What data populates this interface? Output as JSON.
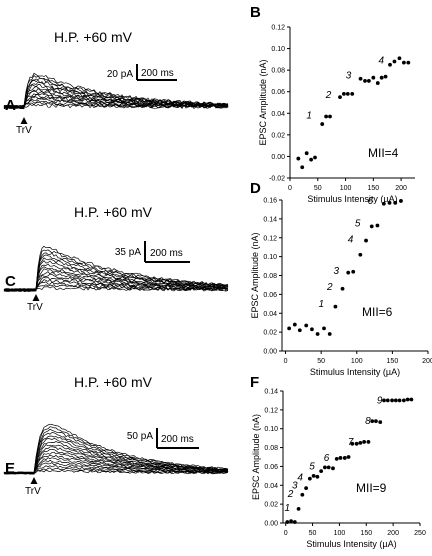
{
  "panels": {
    "A": {
      "letter": "A",
      "hp": "H.P. +60 mV",
      "scale_amp": "20 pA",
      "scale_time": "200 ms",
      "stim": "TrV",
      "n_traces": 16
    },
    "C": {
      "letter": "C",
      "hp": "H.P. +60 mV",
      "scale_amp": "35 pA",
      "scale_time": "200 ms",
      "stim": "TrV",
      "n_traces": 16
    },
    "E": {
      "letter": "E",
      "hp": "H.P. +60 mV",
      "scale_amp": "50 pA",
      "scale_time": "200 ms",
      "stim": "TrV",
      "n_traces": 18
    }
  },
  "chart_data": [
    {
      "letter": "B",
      "type": "scatter",
      "xlabel": "Stimulus Intensity (µA)",
      "ylabel": "EPSC Amplitude (nA)",
      "xlim": [
        0,
        225
      ],
      "ylim": [
        -0.02,
        0.12
      ],
      "xticks": [
        0,
        50,
        100,
        150,
        200
      ],
      "yticks": [
        -0.02,
        0.0,
        0.02,
        0.04,
        0.06,
        0.08,
        0.1,
        0.12
      ],
      "ytick_labels": [
        "-0.02",
        "0.00",
        "0.02",
        "0.04",
        "0.06",
        "0.08",
        "0.10",
        "0.12"
      ],
      "annotation": "MII=4",
      "x": [
        15,
        22,
        30,
        38,
        45,
        58,
        65,
        72,
        90,
        97,
        104,
        112,
        127,
        135,
        142,
        150,
        158,
        165,
        172,
        180,
        188,
        197,
        205,
        213
      ],
      "y": [
        -0.002,
        -0.01,
        0.003,
        -0.003,
        -0.001,
        0.03,
        0.037,
        0.037,
        0.055,
        0.058,
        0.058,
        0.058,
        0.072,
        0.07,
        0.07,
        0.073,
        0.068,
        0.073,
        0.074,
        0.085,
        0.088,
        0.091,
        0.087,
        0.087
      ],
      "step_labels": [
        {
          "text": "1",
          "x": 47,
          "y": 0.038
        },
        {
          "text": "2",
          "x": 82,
          "y": 0.057
        },
        {
          "text": "3",
          "x": 118,
          "y": 0.075
        },
        {
          "text": "4",
          "x": 177,
          "y": 0.089
        }
      ]
    },
    {
      "letter": "D",
      "type": "scatter",
      "xlabel": "Stimulus Intensity (µA)",
      "ylabel": "EPSC Amplitude (nA)",
      "xlim": [
        -5,
        200
      ],
      "ylim": [
        0.0,
        0.16
      ],
      "xticks": [
        0,
        50,
        100,
        150,
        200
      ],
      "yticks": [
        0.0,
        0.02,
        0.04,
        0.06,
        0.08,
        0.1,
        0.12,
        0.14,
        0.16
      ],
      "ytick_labels": [
        "0.00",
        "0.02",
        "0.04",
        "0.06",
        "0.08",
        "0.10",
        "0.12",
        "0.14",
        "0.16"
      ],
      "annotation": "MII=6",
      "x": [
        5,
        13,
        20,
        29,
        37,
        45,
        54,
        62,
        70,
        80,
        88,
        95,
        105,
        113,
        121,
        129,
        138,
        146,
        154,
        162
      ],
      "y": [
        0.024,
        0.028,
        0.022,
        0.027,
        0.023,
        0.018,
        0.024,
        0.018,
        0.047,
        0.066,
        0.083,
        0.084,
        0.102,
        0.117,
        0.132,
        0.133,
        0.156,
        0.157,
        0.157,
        0.159
      ],
      "step_labels": [
        {
          "text": "1",
          "x": 60,
          "y": 0.05
        },
        {
          "text": "2",
          "x": 72,
          "y": 0.068
        },
        {
          "text": "3",
          "x": 81,
          "y": 0.085
        },
        {
          "text": "4",
          "x": 101,
          "y": 0.118
        },
        {
          "text": "5",
          "x": 111,
          "y": 0.135
        },
        {
          "text": "6",
          "x": 129,
          "y": 0.159
        }
      ]
    },
    {
      "letter": "F",
      "type": "scatter",
      "xlabel": "Stimulus Intensity (µA)",
      "ylabel": "EPSC Amplitude (nA)",
      "xlim": [
        -5,
        250
      ],
      "ylim": [
        0.0,
        0.14
      ],
      "xticks": [
        0,
        50,
        100,
        150,
        200,
        250
      ],
      "yticks": [
        0.0,
        0.02,
        0.04,
        0.06,
        0.08,
        0.1,
        0.12,
        0.14
      ],
      "ytick_labels": [
        "0.00",
        "0.02",
        "0.04",
        "0.06",
        "0.08",
        "0.10",
        "0.12",
        "0.14"
      ],
      "annotation": "MII=9",
      "x": [
        3,
        10,
        17,
        24,
        31,
        38,
        45,
        52,
        59,
        66,
        73,
        80,
        88,
        95,
        102,
        110,
        117,
        124,
        132,
        139,
        146,
        154,
        161,
        168,
        176,
        183,
        190,
        198,
        205,
        212,
        220,
        227,
        234
      ],
      "y": [
        0.001,
        0.002,
        0.001,
        0.015,
        0.03,
        0.037,
        0.047,
        0.05,
        0.049,
        0.055,
        0.059,
        0.059,
        0.058,
        0.068,
        0.069,
        0.069,
        0.07,
        0.084,
        0.084,
        0.085,
        0.086,
        0.086,
        0.108,
        0.108,
        0.107,
        0.13,
        0.13,
        0.13,
        0.13,
        0.13,
        0.13,
        0.131,
        0.131
      ],
      "step_labels": [
        {
          "text": "1",
          "x": 16,
          "y": 0.016
        },
        {
          "text": "2",
          "x": 22,
          "y": 0.031
        },
        {
          "text": "3",
          "x": 30,
          "y": 0.04
        },
        {
          "text": "4",
          "x": 40,
          "y": 0.048
        },
        {
          "text": "5",
          "x": 62,
          "y": 0.06
        },
        {
          "text": "6",
          "x": 89,
          "y": 0.069
        },
        {
          "text": "7",
          "x": 134,
          "y": 0.086
        },
        {
          "text": "8",
          "x": 166,
          "y": 0.108
        },
        {
          "text": "9",
          "x": 188,
          "y": 0.13
        }
      ]
    }
  ]
}
